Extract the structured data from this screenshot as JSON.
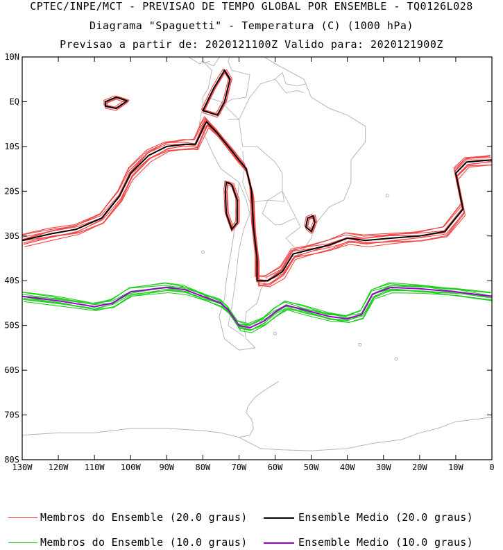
{
  "header": {
    "line1": "CPTEC/INPE/MCT - PREVISAO DE TEMPO GLOBAL POR ENSEMBLE - TQ0126L028",
    "line2": "Diagrama \"Spaguetti\" - Temperatura (C) (1000 hPa)",
    "line3": "Previsao a partir de: 2020121100Z  Valido para: 2020121900Z"
  },
  "colors": {
    "member20": "#f04848",
    "mean20": "#000000",
    "member10": "#22cc22",
    "mean10": "#9900cc",
    "coast": "#b4b4b4"
  },
  "chart_data": {
    "type": "map",
    "projection": "lat-lon",
    "lon_range": [
      -130,
      0
    ],
    "lat_range": [
      -80,
      10
    ],
    "x_ticks": [
      "130W",
      "120W",
      "110W",
      "100W",
      "90W",
      "80W",
      "70W",
      "60W",
      "50W",
      "40W",
      "30W",
      "20W",
      "10W",
      "0"
    ],
    "y_ticks": [
      "10N",
      "EQ",
      "10S",
      "20S",
      "30S",
      "40S",
      "50S",
      "60S",
      "70S",
      "80S"
    ],
    "series": [
      {
        "name": "Ensemble Medio (10.0 graus)",
        "value_c": 10.0,
        "points": [
          [
            -130,
            -43.5
          ],
          [
            -120,
            -44.5
          ],
          [
            -110,
            -45.8
          ],
          [
            -105,
            -45
          ],
          [
            -100,
            -42.5
          ],
          [
            -90,
            -41.5
          ],
          [
            -85,
            -42
          ],
          [
            -80,
            -43.5
          ],
          [
            -75,
            -45
          ],
          [
            -73,
            -46.5
          ],
          [
            -70,
            -50
          ],
          [
            -67,
            -50.5
          ],
          [
            -63,
            -49
          ],
          [
            -60,
            -47
          ],
          [
            -57,
            -45.5
          ],
          [
            -52,
            -46.5
          ],
          [
            -45,
            -48
          ],
          [
            -40,
            -48.5
          ],
          [
            -36,
            -47.5
          ],
          [
            -33,
            -43
          ],
          [
            -28,
            -41.5
          ],
          [
            -20,
            -41.8
          ],
          [
            -10,
            -42.5
          ],
          [
            0,
            -43.5
          ]
        ]
      },
      {
        "name": "Ensemble Medio (20.0 graus)",
        "value_c": 20.0,
        "points": [
          [
            -130,
            -31
          ],
          [
            -122,
            -29.5
          ],
          [
            -115,
            -28.5
          ],
          [
            -108,
            -26
          ],
          [
            -103,
            -21
          ],
          [
            -100,
            -16
          ],
          [
            -95,
            -12
          ],
          [
            -90,
            -10
          ],
          [
            -85,
            -9.5
          ],
          [
            -82,
            -9.5
          ],
          [
            -80,
            -6
          ],
          [
            -79,
            -4.5
          ],
          [
            -76,
            -7
          ],
          [
            -71,
            -12
          ],
          [
            -68,
            -15
          ],
          [
            -66.5,
            -20
          ],
          [
            -66,
            -28
          ],
          [
            -65,
            -35
          ],
          [
            -65,
            -40
          ],
          [
            -62,
            -40
          ],
          [
            -58,
            -38
          ],
          [
            -55,
            -34
          ],
          [
            -50,
            -33
          ],
          [
            -45,
            -32
          ],
          [
            -40,
            -30.5
          ],
          [
            -35,
            -31
          ],
          [
            -28,
            -30.5
          ],
          [
            -20,
            -30
          ],
          [
            -13,
            -29
          ],
          [
            -8,
            -24
          ],
          [
            -10,
            -16
          ],
          [
            -7,
            -13.5
          ],
          [
            0,
            -13
          ]
        ]
      }
    ],
    "islands_20": [
      {
        "name": "galapagos",
        "points": [
          [
            -107,
            0
          ],
          [
            -104,
            1
          ],
          [
            -101,
            0.2
          ],
          [
            -104,
            -1.5
          ],
          [
            -107,
            -1
          ]
        ]
      },
      {
        "name": "andes-north",
        "points": [
          [
            -80,
            -2
          ],
          [
            -77,
            3
          ],
          [
            -74,
            7
          ],
          [
            -72.5,
            5
          ],
          [
            -74,
            0
          ],
          [
            -76,
            -3
          ]
        ]
      },
      {
        "name": "bolivia",
        "points": [
          [
            -73.5,
            -18
          ],
          [
            -72,
            -18.5
          ],
          [
            -70.5,
            -22
          ],
          [
            -70.5,
            -27
          ],
          [
            -72,
            -28.5
          ],
          [
            -73.5,
            -25
          ],
          [
            -73.8,
            -20
          ]
        ]
      },
      {
        "name": "brazil-south",
        "points": [
          [
            -51,
            -26
          ],
          [
            -49.5,
            -25.5
          ],
          [
            -49,
            -27
          ],
          [
            -50,
            -29
          ],
          [
            -51.5,
            -28
          ]
        ]
      }
    ],
    "legend": [
      "Membros do Ensemble (20.0 graus)",
      "Ensemble Medio (20.0 graus)",
      "Membros do Ensemble (10.0 graus)",
      "Ensemble Medio (10.0 graus)"
    ]
  }
}
